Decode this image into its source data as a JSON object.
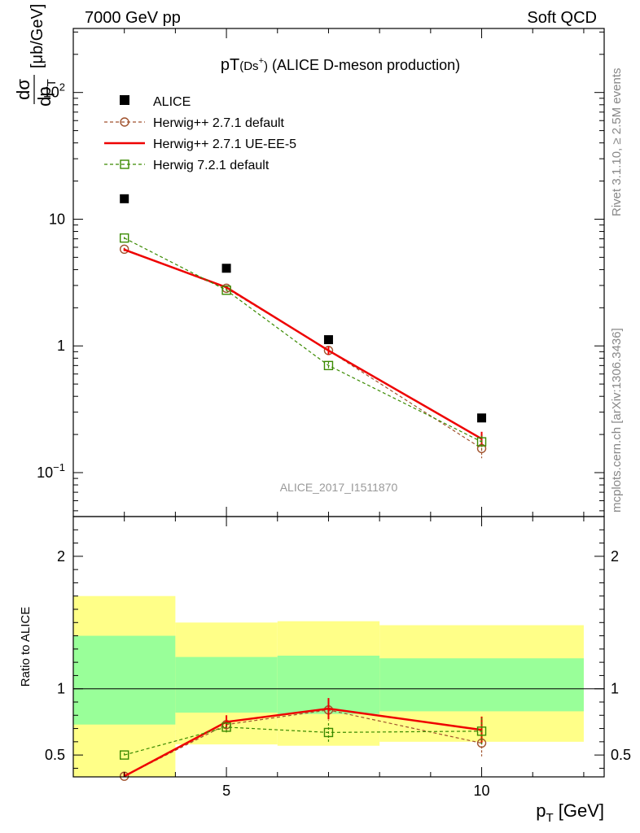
{
  "header": {
    "left": "7000 GeV pp",
    "right": "Soft QCD"
  },
  "side_labels": {
    "upper": "Rivet 3.1.10, ≥ 2.5M events",
    "lower": "mcplots.cern.ch [arXiv:1306.3436]"
  },
  "colors": {
    "alice": "#000000",
    "herwig_default": "#a0522d",
    "herwig_ueee5": "#ee0000",
    "herwig72": "#3a8a00",
    "band_inner": "#99ff99",
    "band_outer": "#ffff88"
  },
  "chart_data": [
    {
      "type": "scatter",
      "panel": "main",
      "title_main": "pT",
      "title_sub": "(Ds",
      "title_sup": "+",
      "title_close": ")",
      "title_rest": " (ALICE D-meson production)",
      "ylabel_num": "dσ",
      "ylabel_den": "dp",
      "ylabel_den_sub": "T",
      "ylabel_unit": "[μb/GeV]",
      "watermark": "ALICE_2017_I1511870",
      "yscale": "log",
      "ylim": [
        0.045,
        320
      ],
      "xlim": [
        2.0,
        12.4
      ],
      "yticks": [
        {
          "value": 0.1,
          "base": "10",
          "exp": "−1"
        },
        {
          "value": 1,
          "label": "1"
        },
        {
          "value": 10,
          "label": "10"
        },
        {
          "value": 100,
          "base": "10",
          "exp": "2"
        }
      ],
      "legend_position": "top-left",
      "series": [
        {
          "name": "ALICE",
          "style": "data",
          "x": [
            3,
            5,
            7,
            10
          ],
          "y": [
            14.5,
            4.1,
            1.12,
            0.27
          ]
        },
        {
          "name": "Herwig++ 2.7.1 default",
          "style": "dashed-circle",
          "x": [
            3,
            5,
            7,
            10
          ],
          "y": [
            5.8,
            2.85,
            0.92,
            0.155
          ],
          "yerr": [
            0.15,
            0.1,
            0.06,
            0.025
          ]
        },
        {
          "name": "Herwig++ 2.7.1 UE-EE-5",
          "style": "solid",
          "x": [
            3,
            5,
            7,
            10
          ],
          "y": [
            5.75,
            2.9,
            0.92,
            0.185
          ],
          "yerr": [
            0.15,
            0.1,
            0.07,
            0.025
          ]
        },
        {
          "name": "Herwig 7.2.1 default",
          "style": "dashed-square",
          "x": [
            3,
            5,
            7,
            10
          ],
          "y": [
            7.1,
            2.75,
            0.7,
            0.175
          ],
          "yerr": [
            0.15,
            0.1,
            0.05,
            0.02
          ]
        }
      ]
    },
    {
      "type": "line",
      "panel": "ratio",
      "ylabel": "Ratio to ALICE",
      "xlabel_main": "p",
      "xlabel_sub": "T",
      "xlabel_unit": " [GeV]",
      "ylim": [
        0.335,
        2.3
      ],
      "xlim": [
        2.0,
        12.4
      ],
      "xticks": [
        {
          "value": 5,
          "label": "5"
        },
        {
          "value": 10,
          "label": "10"
        }
      ],
      "yticks": [
        {
          "value": 0.5,
          "label": "0.5"
        },
        {
          "value": 1,
          "label": "1"
        },
        {
          "value": 2,
          "label": "2"
        }
      ],
      "bands": [
        {
          "x0": 2,
          "x1": 4,
          "inner": [
            0.73,
            1.4
          ],
          "outer": [
            0.3,
            1.7
          ]
        },
        {
          "x0": 4,
          "x1": 6,
          "inner": [
            0.82,
            1.24
          ],
          "outer": [
            0.58,
            1.5
          ]
        },
        {
          "x0": 6,
          "x1": 8,
          "inner": [
            0.81,
            1.25
          ],
          "outer": [
            0.57,
            1.51
          ]
        },
        {
          "x0": 8,
          "x1": 12,
          "inner": [
            0.83,
            1.23
          ],
          "outer": [
            0.6,
            1.48
          ]
        }
      ],
      "series": [
        {
          "name": "Herwig++ 2.7.1 default",
          "style": "dashed-circle",
          "x": [
            3,
            5,
            7,
            10
          ],
          "y": [
            0.34,
            0.73,
            0.84,
            0.59
          ],
          "yerr": [
            0.03,
            0.06,
            0.08,
            0.1
          ]
        },
        {
          "name": "Herwig++ 2.7.1 UE-EE-5",
          "style": "solid",
          "x": [
            3,
            5,
            7,
            10
          ],
          "y": [
            0.34,
            0.75,
            0.85,
            0.69
          ],
          "yerr": [
            0.03,
            0.05,
            0.08,
            0.1
          ]
        },
        {
          "name": "Herwig 7.2.1 default",
          "style": "dashed-square",
          "x": [
            3,
            5,
            7,
            10
          ],
          "y": [
            0.5,
            0.71,
            0.67,
            0.68
          ],
          "yerr": [
            0.015,
            0.04,
            0.07,
            0.1
          ]
        }
      ]
    }
  ]
}
